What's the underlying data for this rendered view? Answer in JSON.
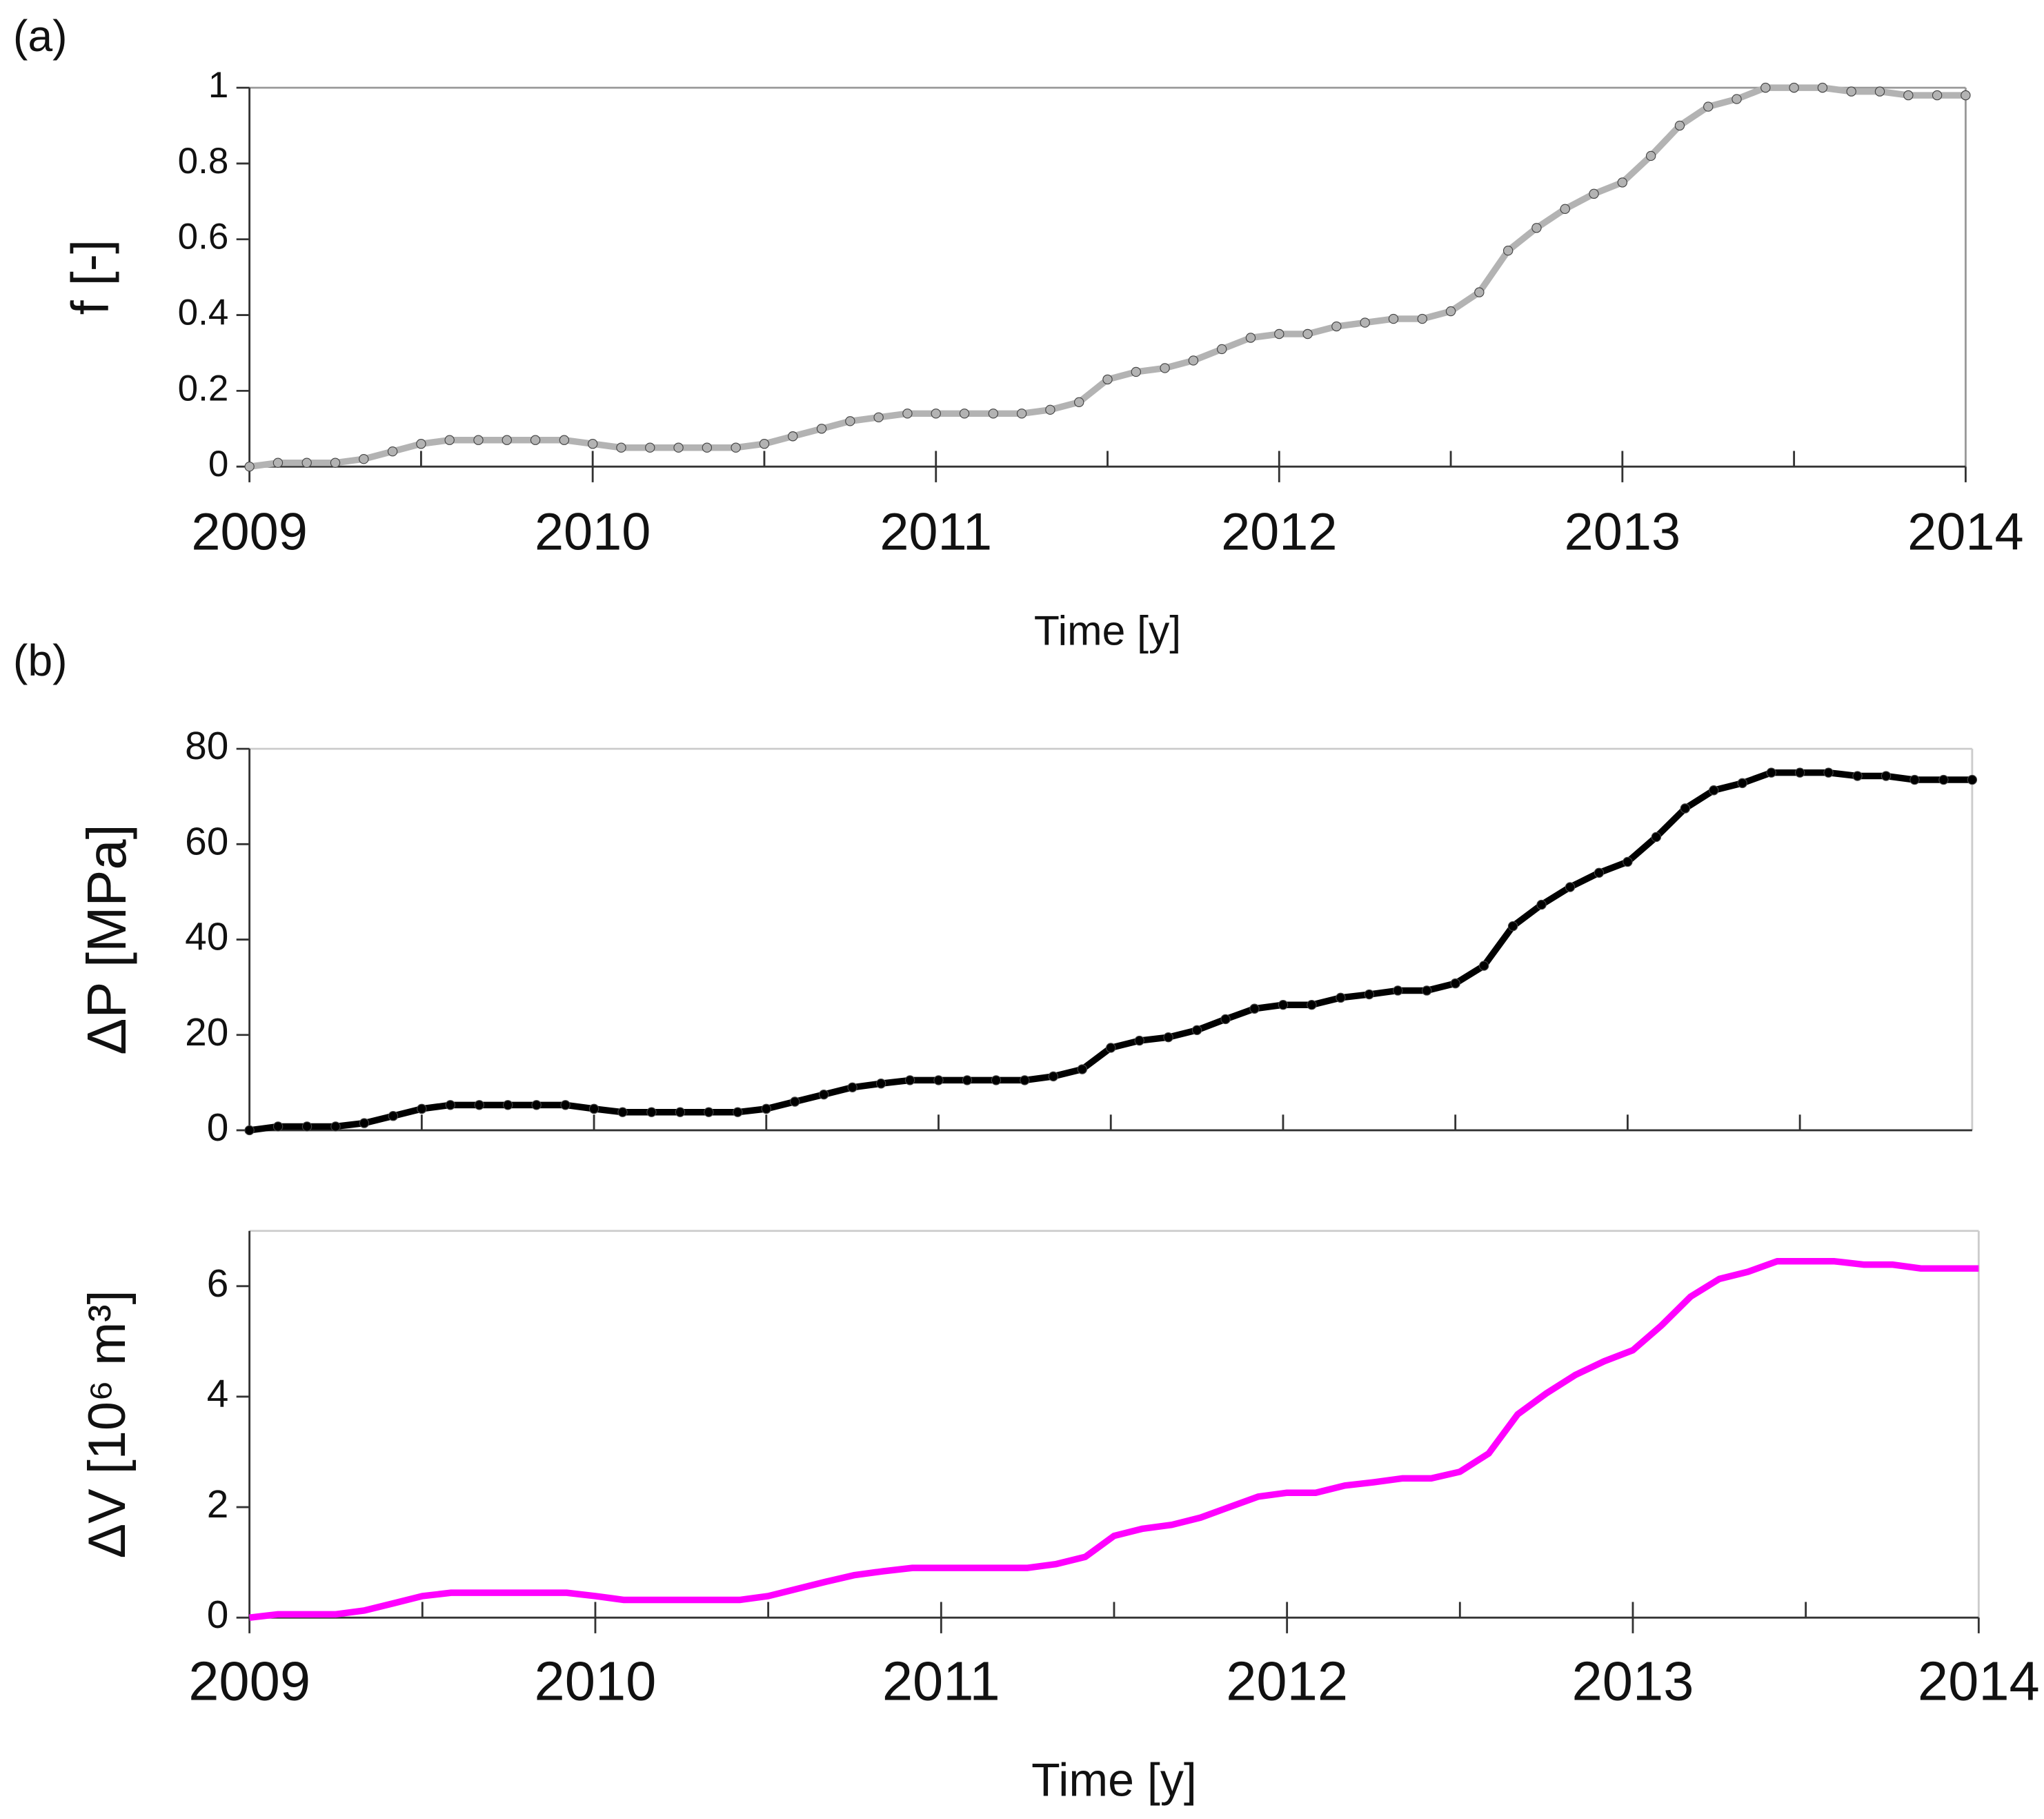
{
  "chart_data": [
    {
      "type": "line",
      "panel_label": "(a)",
      "xlabel": "Time [y]",
      "ylabel": "f [-]",
      "markers": true,
      "xlim": [
        2009,
        2014
      ],
      "xticks": [
        2009,
        2010,
        2011,
        2012,
        2013,
        2014
      ],
      "ylim": [
        0,
        1
      ],
      "yticks": [
        0,
        0.2,
        0.4,
        0.6,
        0.8,
        1
      ],
      "x": [
        2009,
        2009.083,
        2009.167,
        2009.25,
        2009.333,
        2009.417,
        2009.5,
        2009.583,
        2009.667,
        2009.75,
        2009.833,
        2009.917,
        2010,
        2010.083,
        2010.167,
        2010.25,
        2010.333,
        2010.417,
        2010.5,
        2010.583,
        2010.667,
        2010.75,
        2010.833,
        2010.917,
        2011,
        2011.083,
        2011.167,
        2011.25,
        2011.333,
        2011.417,
        2011.5,
        2011.583,
        2011.667,
        2011.75,
        2011.833,
        2011.917,
        2012,
        2012.083,
        2012.167,
        2012.25,
        2012.333,
        2012.417,
        2012.5,
        2012.583,
        2012.667,
        2012.75,
        2012.833,
        2012.917,
        2013,
        2013.083,
        2013.167,
        2013.25,
        2013.333,
        2013.417,
        2013.5,
        2013.583,
        2013.667,
        2013.75,
        2013.833,
        2013.917,
        2014
      ],
      "series": [
        {
          "color": "#b3b3b3",
          "values": [
            0,
            0.01,
            0.01,
            0.01,
            0.02,
            0.04,
            0.06,
            0.07,
            0.07,
            0.07,
            0.07,
            0.07,
            0.06,
            0.05,
            0.05,
            0.05,
            0.05,
            0.05,
            0.06,
            0.08,
            0.1,
            0.12,
            0.13,
            0.14,
            0.14,
            0.14,
            0.14,
            0.14,
            0.15,
            0.17,
            0.23,
            0.25,
            0.26,
            0.28,
            0.31,
            0.34,
            0.35,
            0.35,
            0.37,
            0.38,
            0.39,
            0.39,
            0.41,
            0.46,
            0.57,
            0.63,
            0.68,
            0.72,
            0.75,
            0.82,
            0.9,
            0.95,
            0.97,
            1,
            1,
            1,
            0.99,
            0.99,
            0.98,
            0.98,
            0.98
          ]
        }
      ]
    },
    {
      "type": "line",
      "panel_label": "(b)",
      "ylabel": "ΔP [MPa]",
      "markers": true,
      "xlim": [
        2009,
        2014
      ],
      "ylim": [
        0,
        80
      ],
      "yticks": [
        0,
        20,
        40,
        60,
        80
      ],
      "x": [
        2009,
        2009.083,
        2009.167,
        2009.25,
        2009.333,
        2009.417,
        2009.5,
        2009.583,
        2009.667,
        2009.75,
        2009.833,
        2009.917,
        2010,
        2010.083,
        2010.167,
        2010.25,
        2010.333,
        2010.417,
        2010.5,
        2010.583,
        2010.667,
        2010.75,
        2010.833,
        2010.917,
        2011,
        2011.083,
        2011.167,
        2011.25,
        2011.333,
        2011.417,
        2011.5,
        2011.583,
        2011.667,
        2011.75,
        2011.833,
        2011.917,
        2012,
        2012.083,
        2012.167,
        2012.25,
        2012.333,
        2012.417,
        2012.5,
        2012.583,
        2012.667,
        2012.75,
        2012.833,
        2012.917,
        2013,
        2013.083,
        2013.167,
        2013.25,
        2013.333,
        2013.417,
        2013.5,
        2013.583,
        2013.667,
        2013.75,
        2013.833,
        2013.917,
        2014
      ],
      "series": [
        {
          "color": "#000000",
          "values": [
            0,
            0.8,
            0.8,
            0.8,
            1.5,
            3,
            4.5,
            5.3,
            5.3,
            5.3,
            5.3,
            5.3,
            4.5,
            3.8,
            3.8,
            3.8,
            3.8,
            3.8,
            4.5,
            6,
            7.5,
            9,
            9.8,
            10.5,
            10.5,
            10.5,
            10.5,
            10.5,
            11.3,
            12.8,
            17.3,
            18.8,
            19.5,
            21,
            23.3,
            25.5,
            26.3,
            26.3,
            27.8,
            28.5,
            29.3,
            29.3,
            30.8,
            34.5,
            42.8,
            47.3,
            51,
            54,
            56.3,
            61.5,
            67.5,
            71.3,
            72.8,
            75,
            75,
            75,
            74.3,
            74.3,
            73.5,
            73.5,
            73.5
          ]
        }
      ]
    },
    {
      "type": "line",
      "xlabel": "Time [y]",
      "ylabel": "ΔV [10⁶ m³]",
      "markers": false,
      "xlim": [
        2009,
        2014
      ],
      "xticks": [
        2009,
        2010,
        2011,
        2012,
        2013,
        2014
      ],
      "ylim": [
        0,
        7
      ],
      "yticks": [
        0,
        2,
        4,
        6
      ],
      "x": [
        2009,
        2009.083,
        2009.167,
        2009.25,
        2009.333,
        2009.417,
        2009.5,
        2009.583,
        2009.667,
        2009.75,
        2009.833,
        2009.917,
        2010,
        2010.083,
        2010.167,
        2010.25,
        2010.333,
        2010.417,
        2010.5,
        2010.583,
        2010.667,
        2010.75,
        2010.833,
        2010.917,
        2011,
        2011.083,
        2011.167,
        2011.25,
        2011.333,
        2011.417,
        2011.5,
        2011.583,
        2011.667,
        2011.75,
        2011.833,
        2011.917,
        2012,
        2012.083,
        2012.167,
        2012.25,
        2012.333,
        2012.417,
        2012.5,
        2012.583,
        2012.667,
        2012.75,
        2012.833,
        2012.917,
        2013,
        2013.083,
        2013.167,
        2013.25,
        2013.333,
        2013.417,
        2013.5,
        2013.583,
        2013.667,
        2013.75,
        2013.833,
        2013.917,
        2014
      ],
      "series": [
        {
          "color": "#ff00ff",
          "values": [
            0,
            0.06,
            0.06,
            0.06,
            0.13,
            0.26,
            0.39,
            0.45,
            0.45,
            0.45,
            0.45,
            0.45,
            0.39,
            0.32,
            0.32,
            0.32,
            0.32,
            0.32,
            0.39,
            0.52,
            0.65,
            0.77,
            0.84,
            0.9,
            0.9,
            0.9,
            0.9,
            0.9,
            0.97,
            1.1,
            1.48,
            1.61,
            1.68,
            1.81,
            2,
            2.19,
            2.26,
            2.26,
            2.39,
            2.45,
            2.52,
            2.52,
            2.64,
            2.97,
            3.68,
            4.06,
            4.39,
            4.64,
            4.84,
            5.29,
            5.81,
            6.13,
            6.26,
            6.45,
            6.45,
            6.45,
            6.39,
            6.39,
            6.32,
            6.32,
            6.32
          ]
        }
      ]
    }
  ]
}
